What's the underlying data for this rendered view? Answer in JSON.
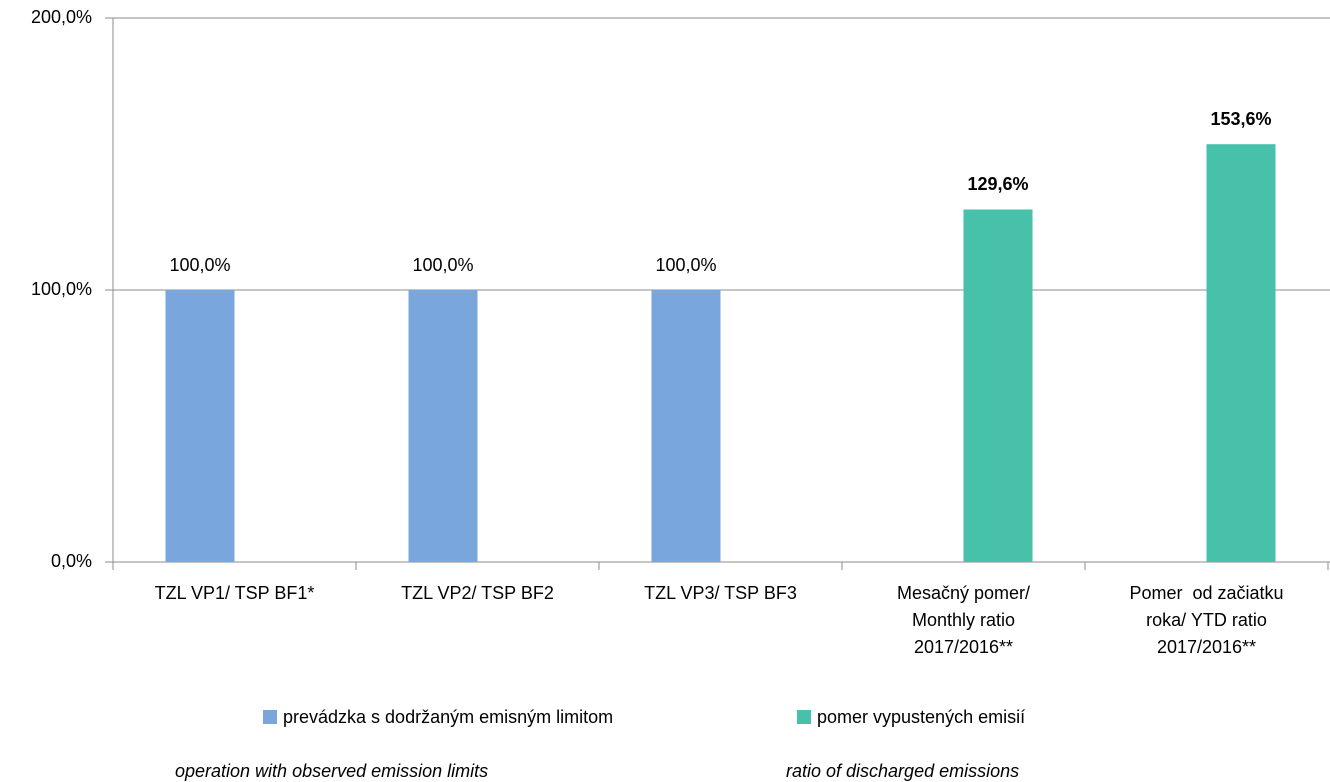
{
  "chart_data": {
    "type": "bar",
    "categories": [
      "TZL VP1/ TSP BF1*",
      "TZL VP2/ TSP BF2",
      "TZL VP3/ TSP BF3",
      "Mesačný pomer/ Monthly ratio 2017/2016**",
      "Pomer  od začiatku roka/ YTD ratio 2017/2016**"
    ],
    "series": [
      {
        "name": "prevádzka s dodržaným emisným limitom",
        "subtitle": "operation with observed emission limits",
        "color": "#7aa6de",
        "label_bold": false,
        "values": [
          100,
          100,
          100,
          null,
          null
        ],
        "value_labels": [
          "100,0%",
          "100,0%",
          "100,0%",
          null,
          null
        ]
      },
      {
        "name": "pomer vypustených emisií",
        "subtitle": "ratio of discharged emissions",
        "color": "#47c1aa",
        "label_bold": true,
        "values": [
          null,
          null,
          null,
          129.6,
          153.6
        ],
        "value_labels": [
          null,
          null,
          null,
          "129,6%",
          "153,6%"
        ]
      }
    ],
    "ylim": [
      0,
      200
    ],
    "yticks": [
      {
        "value": 0,
        "label": "0,0%"
      },
      {
        "value": 100,
        "label": "100,0%"
      },
      {
        "value": 200,
        "label": "200,0%"
      }
    ],
    "grid": true,
    "legend": "bottom"
  }
}
